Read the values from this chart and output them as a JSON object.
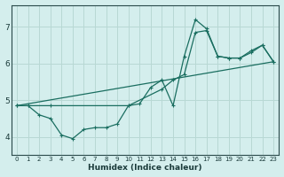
{
  "xlabel": "Humidex (Indice chaleur)",
  "bg_color": "#d4eeed",
  "grid_color": "#b8d8d4",
  "line_color": "#1a6e60",
  "xlim": [
    -0.5,
    23.5
  ],
  "ylim": [
    3.5,
    7.6
  ],
  "xticks": [
    0,
    1,
    2,
    3,
    4,
    5,
    6,
    7,
    8,
    9,
    10,
    11,
    12,
    13,
    14,
    15,
    16,
    17,
    18,
    19,
    20,
    21,
    22,
    23
  ],
  "yticks": [
    4,
    5,
    6,
    7
  ],
  "line1_x": [
    0,
    1,
    2,
    3,
    4,
    5,
    6,
    7,
    8,
    9,
    10,
    11,
    12,
    13,
    14,
    15,
    16,
    17,
    18,
    19,
    20,
    21,
    22,
    23
  ],
  "line1_y": [
    4.85,
    4.85,
    4.6,
    4.5,
    4.05,
    3.95,
    4.2,
    4.25,
    4.25,
    4.35,
    4.85,
    4.9,
    5.35,
    5.55,
    4.85,
    6.2,
    7.2,
    6.95,
    6.2,
    6.15,
    6.15,
    6.35,
    6.5,
    6.05
  ],
  "line2_x": [
    0,
    1,
    3,
    10,
    13,
    14,
    15,
    16,
    17,
    18,
    19,
    20,
    21,
    22,
    23
  ],
  "line2_y": [
    4.85,
    4.85,
    4.85,
    4.85,
    5.3,
    5.55,
    5.7,
    6.85,
    6.9,
    6.2,
    6.15,
    6.15,
    6.3,
    6.5,
    6.05
  ],
  "line3_x": [
    0,
    23
  ],
  "line3_y": [
    4.85,
    6.05
  ],
  "marker": "+"
}
